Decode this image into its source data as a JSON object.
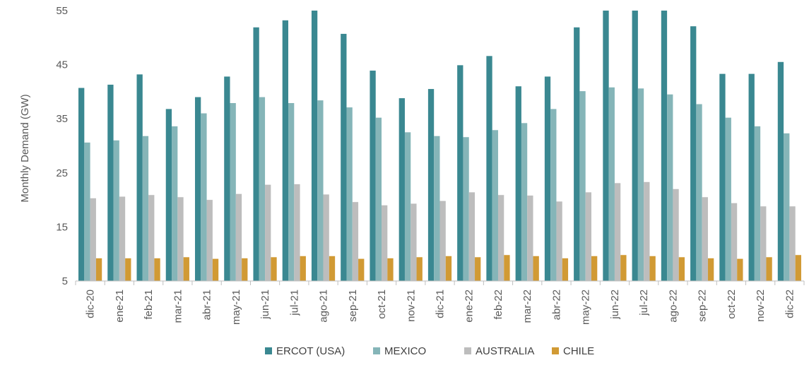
{
  "chart_data": {
    "type": "bar",
    "ylabel": "Monthly Demand (GW)",
    "ylim": [
      5,
      55
    ],
    "yticks": [
      5,
      15,
      25,
      35,
      45,
      55
    ],
    "grid": false,
    "legend_position": "bottom",
    "categories": [
      "dic-20",
      "ene-21",
      "feb-21",
      "mar-21",
      "abr-21",
      "may-21",
      "jun-21",
      "jul-21",
      "ago-21",
      "sep-21",
      "oct-21",
      "nov-21",
      "dic-21",
      "ene-22",
      "feb-22",
      "mar-22",
      "abr-22",
      "may-22",
      "jun-22",
      "jul-22",
      "ago-22",
      "sep-22",
      "oct-22",
      "nov-22",
      "dic-22"
    ],
    "series": [
      {
        "name": "ERCOT (USA)",
        "color": "#3a8891",
        "values": [
          40.7,
          41.3,
          43.2,
          36.8,
          39.0,
          42.8,
          51.9,
          53.2,
          55.6,
          50.7,
          43.9,
          38.8,
          40.5,
          44.9,
          46.6,
          41.0,
          42.8,
          51.9,
          56.0,
          56.4,
          55.6,
          52.1,
          43.3,
          43.3,
          45.5
        ]
      },
      {
        "name": "MEXICO",
        "color": "#85b5b8",
        "values": [
          30.6,
          31.0,
          31.8,
          33.6,
          36.0,
          37.9,
          39.0,
          37.9,
          38.4,
          37.1,
          35.2,
          32.5,
          31.8,
          31.6,
          32.9,
          34.2,
          36.8,
          40.1,
          40.8,
          40.6,
          39.5,
          37.7,
          35.2,
          33.6,
          32.3
        ]
      },
      {
        "name": "AUSTRALIA",
        "color": "#bdbdbd",
        "values": [
          20.3,
          20.6,
          20.9,
          20.5,
          20.0,
          21.1,
          22.8,
          22.9,
          21.0,
          19.6,
          19.0,
          19.3,
          19.8,
          21.4,
          20.9,
          20.8,
          19.7,
          21.4,
          23.1,
          23.3,
          22.0,
          20.5,
          19.4,
          18.8,
          18.8
        ]
      },
      {
        "name": "CHILE",
        "color": "#d19a34",
        "values": [
          9.2,
          9.2,
          9.2,
          9.4,
          9.1,
          9.2,
          9.4,
          9.6,
          9.6,
          9.1,
          9.2,
          9.4,
          9.6,
          9.4,
          9.8,
          9.6,
          9.2,
          9.6,
          9.8,
          9.6,
          9.4,
          9.2,
          9.1,
          9.4,
          9.8
        ]
      }
    ]
  }
}
